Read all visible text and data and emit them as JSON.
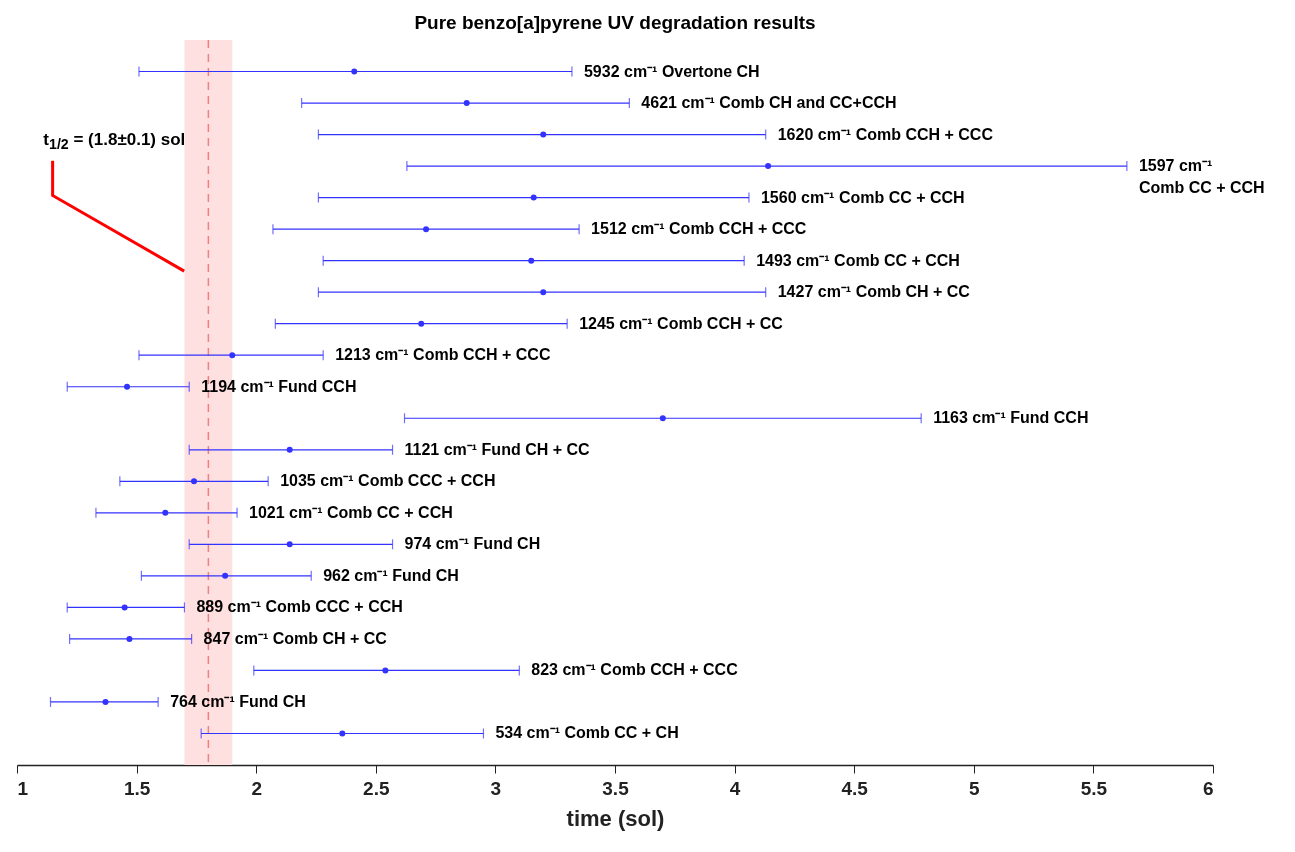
{
  "chart_data": {
    "type": "scatter",
    "orientation": "horizontal",
    "title": "Pure benzo[a]pyrene UV degradation results",
    "xlabel": "time (sol)",
    "categories": [
      "5932 cm⁻¹  Overtone CH",
      "4621 cm⁻¹  Comb CH and CC+CCH",
      "1620 cm⁻¹  Comb CCH + CCC",
      "1597 cm⁻¹  Comb CC + CCH",
      "1560 cm⁻¹  Comb CC + CCH",
      "1512 cm⁻¹  Comb CCH + CCC",
      "1493 cm⁻¹  Comb CC + CCH",
      "1427 cm⁻¹  Comb CH + CC",
      "1245 cm⁻¹  Comb CCH + CC",
      "1213 cm⁻¹  Comb CCH + CCC",
      "1194 cm⁻¹  Fund CCH",
      "1163 cm⁻¹  Fund CCH",
      "1121 cm⁻¹  Fund CH + CC",
      "1035 cm⁻¹  Comb CCC + CCH",
      "1021 cm⁻¹  Comb CC + CCH",
      "974 cm⁻¹  Fund CH",
      "962 cm⁻¹  Fund CH",
      "889 cm⁻¹  Comb CCC + CCH",
      "847 cm⁻¹  Comb CH + CC",
      "823 cm⁻¹  Comb CCH + CCC",
      "764 cm⁻¹  Fund CH",
      "534 cm⁻¹  Comb CC + CH"
    ],
    "series": [
      {
        "color": "#3333ff",
        "values": [
          2.41,
          2.88,
          3.2,
          4.14,
          3.16,
          2.71,
          3.15,
          3.2,
          2.69,
          1.9,
          1.46,
          3.7,
          2.14,
          1.74,
          1.62,
          2.14,
          1.87,
          1.45,
          1.47,
          2.54,
          1.37,
          2.36
        ],
        "errors": [
          [
            1.51,
            3.32
          ],
          [
            2.19,
            3.56
          ],
          [
            2.26,
            4.13
          ],
          [
            2.63,
            5.64
          ],
          [
            2.26,
            4.06
          ],
          [
            2.07,
            3.35
          ],
          [
            2.28,
            4.04
          ],
          [
            2.26,
            4.13
          ],
          [
            2.08,
            3.3
          ],
          [
            1.51,
            2.28
          ],
          [
            1.21,
            1.72
          ],
          [
            2.62,
            4.78
          ],
          [
            1.72,
            2.57
          ],
          [
            1.43,
            2.05
          ],
          [
            1.33,
            1.92
          ],
          [
            1.72,
            2.57
          ],
          [
            1.52,
            2.23
          ],
          [
            1.21,
            1.7
          ],
          [
            1.22,
            1.73
          ],
          [
            1.99,
            3.1
          ],
          [
            1.14,
            1.59
          ],
          [
            1.77,
            2.95
          ]
        ]
      }
    ],
    "xlim": [
      1,
      6
    ],
    "xticks": [
      1,
      1.5,
      2,
      2.5,
      3,
      3.5,
      4,
      4.5,
      5,
      5.5,
      6
    ],
    "marker": "circle",
    "grid": false,
    "ref_lines": [
      {
        "axis": "x",
        "value": 1.8,
        "label": "t$_{1/2}$ = (1.8±0.1) sol",
        "color": "#f08080",
        "line_style": "dashed"
      }
    ],
    "bands": [
      {
        "axis": "x",
        "from": 1.7,
        "to": 1.9,
        "color": "#ffe0e0"
      }
    ]
  }
}
